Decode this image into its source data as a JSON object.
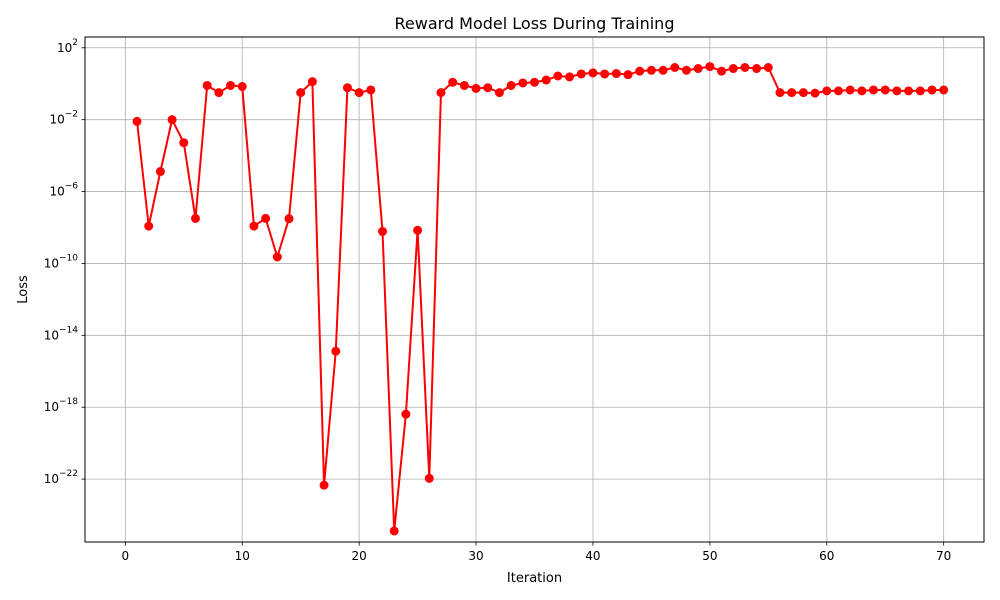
{
  "chart_data": {
    "type": "line",
    "title": "Reward Model Loss During Training",
    "xlabel": "Iteration",
    "ylabel": "Loss",
    "yscale": "log",
    "xlim": [
      -3.45,
      73.45
    ],
    "ylim_log10": [
      -25.5,
      2.6
    ],
    "grid": true,
    "x_ticks": [
      0,
      10,
      20,
      30,
      40,
      50,
      60,
      70
    ],
    "y_ticks_exp": [
      2,
      -2,
      -6,
      -10,
      -14,
      -18,
      -22
    ],
    "series": [
      {
        "color": "#ff0000",
        "marker": "circle",
        "x": [
          1,
          2,
          3,
          4,
          5,
          6,
          7,
          8,
          9,
          10,
          11,
          12,
          13,
          14,
          15,
          16,
          17,
          18,
          19,
          20,
          21,
          22,
          23,
          24,
          25,
          26,
          27,
          28,
          29,
          30,
          31,
          32,
          33,
          34,
          35,
          36,
          37,
          38,
          39,
          40,
          41,
          42,
          43,
          44,
          45,
          46,
          47,
          48,
          49,
          50,
          51,
          52,
          53,
          54,
          55,
          56,
          57,
          58,
          59,
          60,
          61,
          62,
          63,
          64,
          65,
          66,
          67,
          68,
          69,
          70
        ],
        "y": [
          0.008,
          1.2e-08,
          1.3e-05,
          0.01,
          0.00052,
          3.2e-08,
          0.8,
          0.32,
          0.8,
          0.7,
          1.2e-08,
          3.2e-08,
          2.3e-10,
          3.1e-08,
          0.32,
          1.3,
          4.6e-23,
          1.3e-15,
          0.6,
          0.32,
          0.45,
          6e-09,
          1.3e-25,
          4.1e-19,
          7e-09,
          1.1e-22,
          0.32,
          1.2,
          0.8,
          0.55,
          0.6,
          0.32,
          0.8,
          1.1,
          1.2,
          1.6,
          2.7,
          2.4,
          3.5,
          4.0,
          3.5,
          3.7,
          3.2,
          5.0,
          5.6,
          5.6,
          8.0,
          5.6,
          7.0,
          9.0,
          5.0,
          7.0,
          8.0,
          7.0,
          8.0,
          0.32,
          0.32,
          0.32,
          0.3,
          0.4,
          0.4,
          0.45,
          0.4,
          0.45,
          0.45,
          0.4,
          0.4,
          0.4,
          0.45,
          0.45
        ]
      }
    ]
  }
}
